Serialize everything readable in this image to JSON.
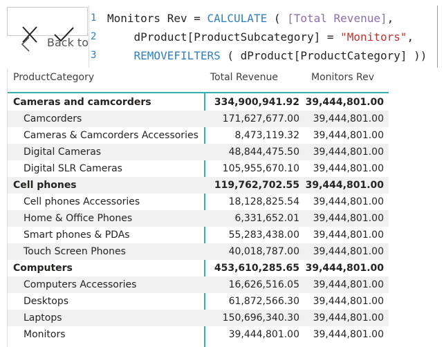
{
  "formula_bar": {
    "back": "Back to",
    "line_numbers": [
      "1",
      "2",
      "3"
    ],
    "lines": [
      [
        "Monitors Rev = ",
        "CALCULATE",
        " ( ",
        "[Total Revenue]",
        ","
      ],
      [
        "    dProduct[ProductSubcategory] = ",
        "\"Monitors\"",
        ","
      ],
      [
        "    ",
        "REMOVEFILTERS",
        " ( dProduct[ProductCategory] ))"
      ]
    ]
  },
  "table": {
    "headers": [
      "ProductCategory",
      "Total Revenue",
      "Monitors Rev"
    ],
    "groups": [
      {
        "row": [
          "Cameras and camcorders",
          "334,900,941.92",
          "39,444,801.00"
        ],
        "children": [
          [
            "Camcorders",
            "171,627,677.00",
            "39,444,801.00"
          ],
          [
            "Cameras & Camcorders Accessories",
            "8,473,119.32",
            "39,444,801.00"
          ],
          [
            "Digital Cameras",
            "48,844,475.50",
            "39,444,801.00"
          ],
          [
            "Digital SLR Cameras",
            "105,955,670.10",
            "39,444,801.00"
          ]
        ]
      },
      {
        "row": [
          "Cell phones",
          "119,762,702.55",
          "39,444,801.00"
        ],
        "children": [
          [
            "Cell phones Accessories",
            "18,128,825.54",
            "39,444,801.00"
          ],
          [
            "Home & Office Phones",
            "6,331,652.01",
            "39,444,801.00"
          ],
          [
            "Smart phones & PDAs",
            "55,283,438.00",
            "39,444,801.00"
          ],
          [
            "Touch Screen Phones",
            "40,018,787.00",
            "39,444,801.00"
          ]
        ]
      },
      {
        "row": [
          "Computers",
          "453,610,285.65",
          "39,444,801.00"
        ],
        "children": [
          [
            "Computers Accessories",
            "16,626,516.05",
            "39,444,801.00"
          ],
          [
            "Desktops",
            "61,872,566.30",
            "39,444,801.00"
          ],
          [
            "Laptops",
            "150,696,340.30",
            "39,444,801.00"
          ],
          [
            "Monitors",
            "39,444,801.00",
            "39,444,801.00"
          ]
        ]
      }
    ]
  }
}
